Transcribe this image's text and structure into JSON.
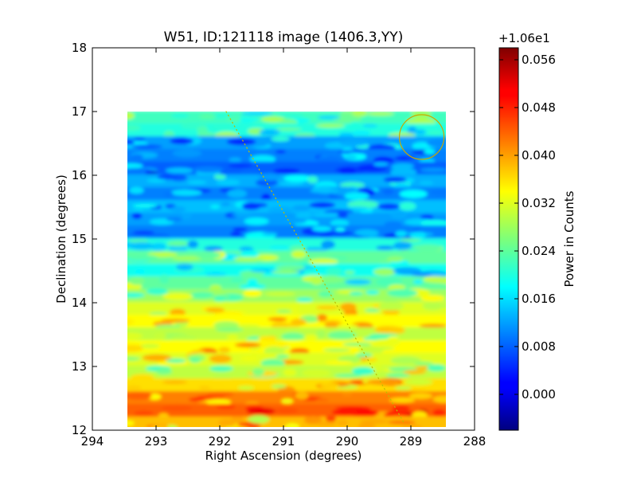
{
  "chart_data": {
    "type": "heatmap",
    "title": "W51, ID:121118 image (1406.3,YY)",
    "xlabel": "Right Ascension (degrees)",
    "ylabel": "Declination (degrees)",
    "xlim": [
      294,
      288
    ],
    "ylim": [
      12,
      18
    ],
    "x_ticks": [
      "294",
      "293",
      "292",
      "291",
      "290",
      "289",
      "288"
    ],
    "y_ticks": [
      "12",
      "13",
      "14",
      "15",
      "16",
      "17",
      "18"
    ],
    "map_extent": {
      "ra": [
        293.45,
        288.45
      ],
      "dec": [
        12.05,
        17.0
      ]
    },
    "colorbar": {
      "label": "Power in Counts",
      "offset_label": "+1.06e1",
      "range": [
        -0.006,
        0.058
      ],
      "ticks": [
        "0.000",
        "0.008",
        "0.016",
        "0.024",
        "0.032",
        "0.040",
        "0.048",
        "0.056"
      ],
      "colormap": "jet"
    },
    "dec_rows": [
      {
        "dec": 16.9,
        "value": 0.022
      },
      {
        "dec": 16.7,
        "value": 0.02
      },
      {
        "dec": 16.5,
        "value": 0.012
      },
      {
        "dec": 16.3,
        "value": 0.01
      },
      {
        "dec": 16.1,
        "value": 0.008
      },
      {
        "dec": 15.9,
        "value": 0.013
      },
      {
        "dec": 15.7,
        "value": 0.01
      },
      {
        "dec": 15.5,
        "value": 0.014
      },
      {
        "dec": 15.3,
        "value": 0.012
      },
      {
        "dec": 15.1,
        "value": 0.01
      },
      {
        "dec": 14.9,
        "value": 0.02
      },
      {
        "dec": 14.7,
        "value": 0.024
      },
      {
        "dec": 14.5,
        "value": 0.019
      },
      {
        "dec": 14.3,
        "value": 0.024
      },
      {
        "dec": 14.1,
        "value": 0.028
      },
      {
        "dec": 13.9,
        "value": 0.032
      },
      {
        "dec": 13.7,
        "value": 0.034
      },
      {
        "dec": 13.5,
        "value": 0.03
      },
      {
        "dec": 13.3,
        "value": 0.034
      },
      {
        "dec": 13.1,
        "value": 0.032
      },
      {
        "dec": 12.9,
        "value": 0.03
      },
      {
        "dec": 12.7,
        "value": 0.036
      },
      {
        "dec": 12.5,
        "value": 0.042
      },
      {
        "dec": 12.3,
        "value": 0.044
      },
      {
        "dec": 12.1,
        "value": 0.038
      }
    ],
    "overlays": {
      "circle": {
        "ra": 288.83,
        "dec": 16.6,
        "radius_deg": 0.35,
        "color": "#c8a800"
      },
      "dotted_track": {
        "points": [
          [
            291.9,
            17.0
          ],
          [
            289.1,
            12.1
          ]
        ],
        "color": "#bdbd00"
      }
    },
    "grid": false
  }
}
